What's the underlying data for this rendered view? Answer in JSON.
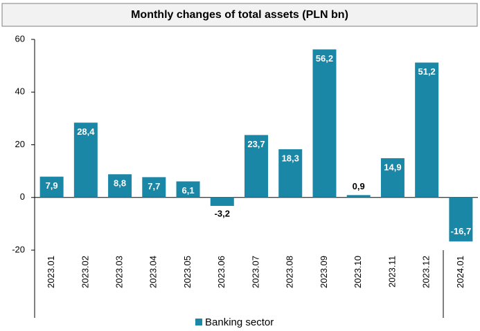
{
  "chart_data": {
    "type": "bar",
    "title": "Monthly changes of total assets (PLN bn)",
    "categories": [
      "2023.01",
      "2023.02",
      "2023.03",
      "2023.04",
      "2023.05",
      "2023.06",
      "2023.07",
      "2023.08",
      "2023.09",
      "2023.10",
      "2023.11",
      "2023.12",
      "2024.01"
    ],
    "series": [
      {
        "name": "Banking sector",
        "color": "#1b87a6",
        "values": [
          7.9,
          28.4,
          8.8,
          7.7,
          6.1,
          -3.2,
          23.7,
          18.3,
          56.2,
          0.9,
          14.9,
          51.2,
          -16.7
        ],
        "value_labels": [
          "7,9",
          "28,4",
          "8,8",
          "7,7",
          "6,1",
          "-3,2",
          "23,7",
          "18,3",
          "56,2",
          "0,9",
          "14,9",
          "51,2",
          "-16,7"
        ]
      }
    ],
    "ylim": [
      -20,
      60
    ],
    "yticks": [
      -20,
      0,
      20,
      40,
      60
    ],
    "grid": false
  }
}
